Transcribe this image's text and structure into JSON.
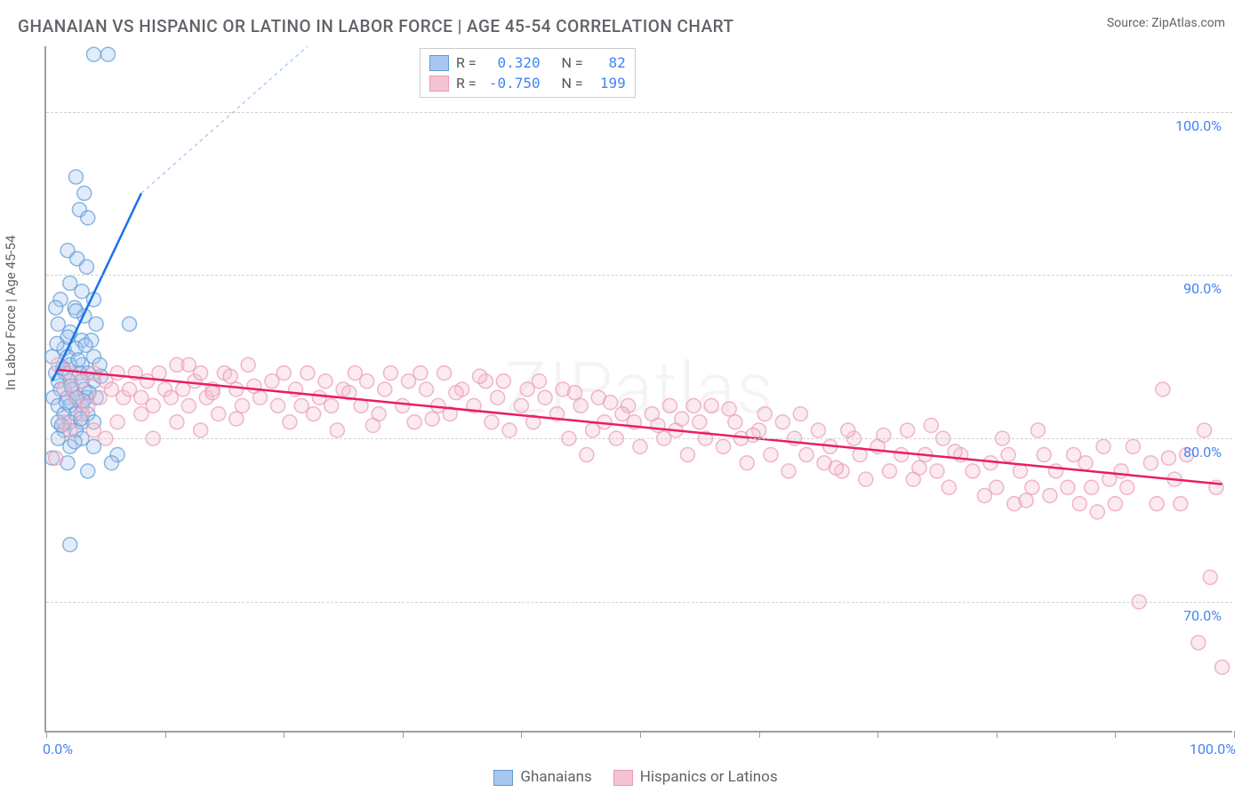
{
  "title": "GHANAIAN VS HISPANIC OR LATINO IN LABOR FORCE | AGE 45-54 CORRELATION CHART",
  "source_label": "Source:",
  "source_name": "ZipAtlas.com",
  "watermark": "ZIPatlas",
  "ylabel": "In Labor Force | Age 45-54",
  "chart": {
    "type": "scatter",
    "xlim": [
      0,
      100
    ],
    "ylim": [
      62,
      104
    ],
    "xticks": [
      0,
      10,
      20,
      30,
      40,
      50,
      60,
      70,
      80,
      90,
      100
    ],
    "yticks": [
      70,
      80,
      90,
      100
    ],
    "ytick_labels": [
      "70.0%",
      "80.0%",
      "90.0%",
      "100.0%"
    ],
    "xtick_labels_shown": {
      "0": "0.0%",
      "100": "100.0%"
    },
    "grid_color": "#d0d0d0",
    "axis_color": "#9e9e9e",
    "tick_label_color": "#4285f4",
    "background_color": "#ffffff",
    "marker_radius": 8,
    "marker_opacity": 0.35,
    "marker_stroke_opacity": 0.7,
    "line_width": 2.5
  },
  "series": [
    {
      "name": "Ghanaians",
      "R": "0.320",
      "N": "82",
      "color_fill": "#a8c7f0",
      "color_stroke": "#5b9bd5",
      "line_color": "#1a73e8",
      "trend": {
        "x1": 0.5,
        "y1": 83.5,
        "x2": 8,
        "y2": 95,
        "dash_x2": 22,
        "dash_y2": 104
      },
      "points": [
        [
          4,
          103.5
        ],
        [
          5.2,
          103.5
        ],
        [
          2.5,
          96
        ],
        [
          3.2,
          95
        ],
        [
          2.8,
          94
        ],
        [
          3.5,
          93.5
        ],
        [
          1.8,
          91.5
        ],
        [
          2.6,
          91
        ],
        [
          3.4,
          90.5
        ],
        [
          2,
          89.5
        ],
        [
          3,
          89
        ],
        [
          4,
          88.5
        ],
        [
          1.2,
          88.5
        ],
        [
          0.8,
          88
        ],
        [
          2.4,
          88
        ],
        [
          3.2,
          87.5
        ],
        [
          4.2,
          87
        ],
        [
          7,
          87
        ],
        [
          1,
          87
        ],
        [
          2,
          86.5
        ],
        [
          3,
          86
        ],
        [
          3.8,
          86
        ],
        [
          1.5,
          85.5
        ],
        [
          2.5,
          85.5
        ],
        [
          4,
          85
        ],
        [
          0.5,
          85
        ],
        [
          1.8,
          85
        ],
        [
          3,
          84.5
        ],
        [
          2,
          84.5
        ],
        [
          4.5,
          84.5
        ],
        [
          0.8,
          84
        ],
        [
          1.6,
          84
        ],
        [
          2.8,
          84
        ],
        [
          3.5,
          84
        ],
        [
          1,
          83.5
        ],
        [
          2,
          83.5
        ],
        [
          3,
          83.5
        ],
        [
          4,
          83.5
        ],
        [
          1.2,
          83
        ],
        [
          2.2,
          83
        ],
        [
          3.2,
          83
        ],
        [
          0.6,
          82.5
        ],
        [
          1.8,
          82.5
        ],
        [
          2.6,
          82.5
        ],
        [
          3.4,
          82.5
        ],
        [
          4.2,
          82.5
        ],
        [
          1,
          82
        ],
        [
          2,
          82
        ],
        [
          3,
          82
        ],
        [
          1.5,
          81.5
        ],
        [
          2.5,
          81.5
        ],
        [
          3.5,
          81.5
        ],
        [
          1,
          81
        ],
        [
          2,
          81
        ],
        [
          3,
          81
        ],
        [
          4,
          81
        ],
        [
          1.5,
          80.5
        ],
        [
          2.5,
          80.5
        ],
        [
          1,
          80
        ],
        [
          3,
          80
        ],
        [
          2,
          79.5
        ],
        [
          4,
          79.5
        ],
        [
          6,
          79
        ],
        [
          1.8,
          78.5
        ],
        [
          3.5,
          78
        ],
        [
          5.5,
          78.5
        ],
        [
          2,
          73.5
        ],
        [
          0.5,
          78.8
        ],
        [
          2.5,
          87.8
        ],
        [
          1.8,
          86.2
        ],
        [
          3.3,
          85.7
        ],
        [
          2.7,
          84.8
        ],
        [
          1.4,
          84.3
        ],
        [
          2.1,
          83.2
        ],
        [
          3.6,
          82.8
        ],
        [
          1.7,
          82.2
        ],
        [
          2.9,
          81.2
        ],
        [
          1.3,
          80.8
        ],
        [
          2.4,
          79.8
        ],
        [
          3.1,
          82.3
        ],
        [
          4.6,
          83.8
        ],
        [
          0.9,
          85.8
        ]
      ]
    },
    {
      "name": "Hispanics or Latinos",
      "R": "-0.750",
      "N": "199",
      "color_fill": "#f4c2d0",
      "color_stroke": "#ea9ab2",
      "line_color": "#e91e63",
      "trend": {
        "x1": 1,
        "y1": 84.2,
        "x2": 99,
        "y2": 77.2
      },
      "points": [
        [
          1,
          84.5
        ],
        [
          1.5,
          83
        ],
        [
          2,
          84
        ],
        [
          2.5,
          82.5
        ],
        [
          3,
          83.5
        ],
        [
          3.5,
          82
        ],
        [
          4,
          84
        ],
        [
          4.5,
          82.5
        ],
        [
          5,
          83.5
        ],
        [
          5.5,
          83
        ],
        [
          6,
          84
        ],
        [
          6.5,
          82.5
        ],
        [
          7,
          83
        ],
        [
          7.5,
          84
        ],
        [
          8,
          82.5
        ],
        [
          8.5,
          83.5
        ],
        [
          9,
          82
        ],
        [
          9.5,
          84
        ],
        [
          10,
          83
        ],
        [
          10.5,
          82.5
        ],
        [
          11,
          84.5
        ],
        [
          11.5,
          83
        ],
        [
          12,
          82
        ],
        [
          12.5,
          83.5
        ],
        [
          13,
          84
        ],
        [
          13.5,
          82.5
        ],
        [
          14,
          83
        ],
        [
          14.5,
          81.5
        ],
        [
          15,
          84
        ],
        [
          16,
          83
        ],
        [
          16.5,
          82
        ],
        [
          17,
          84.5
        ],
        [
          18,
          82.5
        ],
        [
          19,
          83.5
        ],
        [
          19.5,
          82
        ],
        [
          20,
          84
        ],
        [
          21,
          83
        ],
        [
          21.5,
          82
        ],
        [
          22,
          84
        ],
        [
          23,
          82.5
        ],
        [
          23.5,
          83.5
        ],
        [
          24,
          82
        ],
        [
          25,
          83
        ],
        [
          26,
          84
        ],
        [
          26.5,
          82
        ],
        [
          27,
          83.5
        ],
        [
          28,
          81.5
        ],
        [
          28.5,
          83
        ],
        [
          29,
          84
        ],
        [
          30,
          82
        ],
        [
          30.5,
          83.5
        ],
        [
          31,
          81
        ],
        [
          32,
          83
        ],
        [
          33,
          82
        ],
        [
          33.5,
          84
        ],
        [
          34,
          81.5
        ],
        [
          35,
          83
        ],
        [
          36,
          82
        ],
        [
          37,
          83.5
        ],
        [
          37.5,
          81
        ],
        [
          38,
          82.5
        ],
        [
          39,
          80.5
        ],
        [
          40,
          82
        ],
        [
          40.5,
          83
        ],
        [
          41,
          81
        ],
        [
          42,
          82.5
        ],
        [
          43,
          81.5
        ],
        [
          43.5,
          83
        ],
        [
          44,
          80
        ],
        [
          45,
          82
        ],
        [
          46,
          80.5
        ],
        [
          46.5,
          82.5
        ],
        [
          47,
          81
        ],
        [
          48,
          80
        ],
        [
          49,
          82
        ],
        [
          49.5,
          81
        ],
        [
          50,
          79.5
        ],
        [
          51,
          81.5
        ],
        [
          52,
          80
        ],
        [
          52.5,
          82
        ],
        [
          53,
          80.5
        ],
        [
          54,
          79
        ],
        [
          55,
          81
        ],
        [
          55.5,
          80
        ],
        [
          56,
          82
        ],
        [
          57,
          79.5
        ],
        [
          58,
          81
        ],
        [
          58.5,
          80
        ],
        [
          59,
          78.5
        ],
        [
          60,
          80.5
        ],
        [
          61,
          79
        ],
        [
          62,
          81
        ],
        [
          62.5,
          78
        ],
        [
          63,
          80
        ],
        [
          64,
          79
        ],
        [
          65,
          80.5
        ],
        [
          65.5,
          78.5
        ],
        [
          66,
          79.5
        ],
        [
          67,
          78
        ],
        [
          68,
          80
        ],
        [
          68.5,
          79
        ],
        [
          69,
          77.5
        ],
        [
          70,
          79.5
        ],
        [
          71,
          78
        ],
        [
          72,
          79
        ],
        [
          72.5,
          80.5
        ],
        [
          73,
          77.5
        ],
        [
          74,
          79
        ],
        [
          75,
          78
        ],
        [
          75.5,
          80
        ],
        [
          76,
          77
        ],
        [
          77,
          79
        ],
        [
          78,
          78
        ],
        [
          79,
          76.5
        ],
        [
          79.5,
          78.5
        ],
        [
          80,
          77
        ],
        [
          81,
          79
        ],
        [
          81.5,
          76
        ],
        [
          82,
          78
        ],
        [
          83,
          77
        ],
        [
          84,
          79
        ],
        [
          84.5,
          76.5
        ],
        [
          85,
          78
        ],
        [
          86,
          77
        ],
        [
          87,
          76
        ],
        [
          87.5,
          78.5
        ],
        [
          88,
          77
        ],
        [
          89,
          79.5
        ],
        [
          90,
          76
        ],
        [
          90.5,
          78
        ],
        [
          91,
          77
        ],
        [
          92,
          70
        ],
        [
          93,
          78.5
        ],
        [
          93.5,
          76
        ],
        [
          94,
          83
        ],
        [
          95,
          77.5
        ],
        [
          95.5,
          76
        ],
        [
          96,
          79
        ],
        [
          97,
          67.5
        ],
        [
          97.5,
          80.5
        ],
        [
          98,
          71.5
        ],
        [
          98.5,
          77
        ],
        [
          99,
          66
        ],
        [
          3,
          81.5
        ],
        [
          4,
          80.5
        ],
        [
          5,
          80
        ],
        [
          2,
          80.5
        ],
        [
          1.5,
          81
        ],
        [
          0.8,
          78.8
        ],
        [
          15.5,
          83.8
        ],
        [
          17.5,
          83.2
        ],
        [
          25.5,
          82.8
        ],
        [
          32.5,
          81.2
        ],
        [
          36.5,
          83.8
        ],
        [
          44.5,
          82.8
        ],
        [
          51.5,
          80.8
        ],
        [
          57.5,
          81.8
        ],
        [
          63.5,
          81.5
        ],
        [
          70.5,
          80.2
        ],
        [
          76.5,
          79.2
        ],
        [
          83.5,
          80.5
        ],
        [
          89.5,
          77.5
        ],
        [
          6,
          81
        ],
        [
          8,
          81.5
        ],
        [
          11,
          81
        ],
        [
          13,
          80.5
        ],
        [
          20.5,
          81
        ],
        [
          24.5,
          80.5
        ],
        [
          31.5,
          84
        ],
        [
          38.5,
          83.5
        ],
        [
          45.5,
          79
        ],
        [
          48.5,
          81.5
        ],
        [
          54.5,
          82
        ],
        [
          60.5,
          81.5
        ],
        [
          67.5,
          80.5
        ],
        [
          73.5,
          78.2
        ],
        [
          80.5,
          80
        ],
        [
          86.5,
          79
        ],
        [
          91.5,
          79.5
        ],
        [
          9,
          80
        ],
        [
          12,
          84.5
        ],
        [
          14,
          82.8
        ],
        [
          16,
          81.2
        ],
        [
          22.5,
          81.5
        ],
        [
          27.5,
          80.8
        ],
        [
          34.5,
          82.8
        ],
        [
          41.5,
          83.5
        ],
        [
          47.5,
          82.2
        ],
        [
          53.5,
          81.2
        ],
        [
          59.5,
          80.2
        ],
        [
          66.5,
          78.2
        ],
        [
          74.5,
          80.8
        ],
        [
          82.5,
          76.2
        ],
        [
          88.5,
          75.5
        ],
        [
          94.5,
          78.8
        ]
      ]
    }
  ],
  "legend_labels": {
    "R": "R =",
    "N": "N ="
  },
  "bottom_legend": {
    "series1": "Ghanaians",
    "series2": "Hispanics or Latinos"
  }
}
